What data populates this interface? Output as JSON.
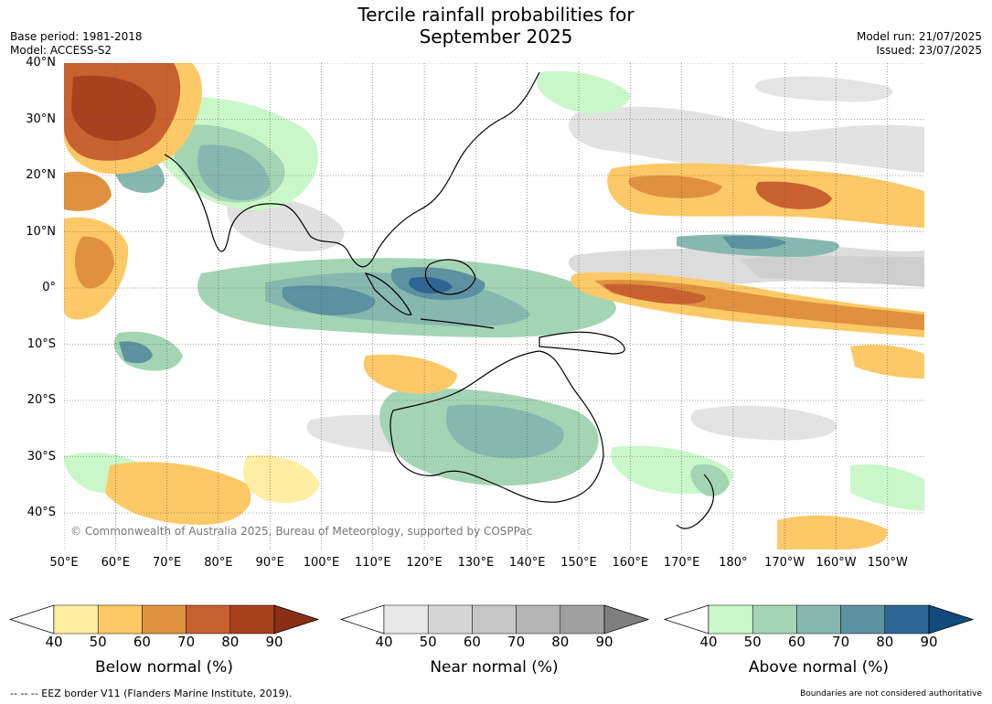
{
  "title": {
    "line1": "Tercile rainfall probabilities for",
    "line2": "September 2025"
  },
  "meta_left": {
    "base_period": "Base period: 1981-2018",
    "model": "Model: ACCESS-S2"
  },
  "meta_right": {
    "model_run": "Model run: 21/07/2025",
    "issued": "Issued: 23/07/2025"
  },
  "map": {
    "lat_labels": [
      "40°N",
      "30°N",
      "20°N",
      "10°N",
      "0°",
      "10°S",
      "20°S",
      "30°S",
      "40°S"
    ],
    "lon_labels": [
      "50°E",
      "60°E",
      "70°E",
      "80°E",
      "90°E",
      "100°E",
      "110°E",
      "120°E",
      "130°E",
      "140°E",
      "150°E",
      "160°E",
      "170°E",
      "180°",
      "170°W",
      "160°W",
      "150°W"
    ],
    "copyright": "© Commonwealth of Australia 2025, Bureau of Meteorology, supported by COSPPac"
  },
  "colorbars": [
    {
      "title": "Below normal (%)",
      "ticks": [
        "40",
        "50",
        "60",
        "70",
        "80",
        "90"
      ],
      "colors": [
        "#ffffff",
        "#feeda2",
        "#fdc966",
        "#e0913f",
        "#c8612f",
        "#a9411f",
        "#8a2f17"
      ]
    },
    {
      "title": "Near normal (%)",
      "ticks": [
        "40",
        "50",
        "60",
        "70",
        "80",
        "90"
      ],
      "colors": [
        "#ffffff",
        "#e8e8e8",
        "#d6d6d6",
        "#c6c6c6",
        "#b4b4b4",
        "#a0a0a0",
        "#7f7f7f"
      ]
    },
    {
      "title": "Above normal (%)",
      "ticks": [
        "40",
        "50",
        "60",
        "70",
        "80",
        "90"
      ],
      "colors": [
        "#ffffff",
        "#caf7c9",
        "#a3d5b4",
        "#86b8af",
        "#5c929f",
        "#2f6595",
        "#134a7d"
      ]
    }
  ],
  "footer": {
    "eez_note": "--  --  -- EEZ border V11 (Flanders Marine Institute, 2019).",
    "authority_note": "Boundaries are not considered authoritative"
  }
}
